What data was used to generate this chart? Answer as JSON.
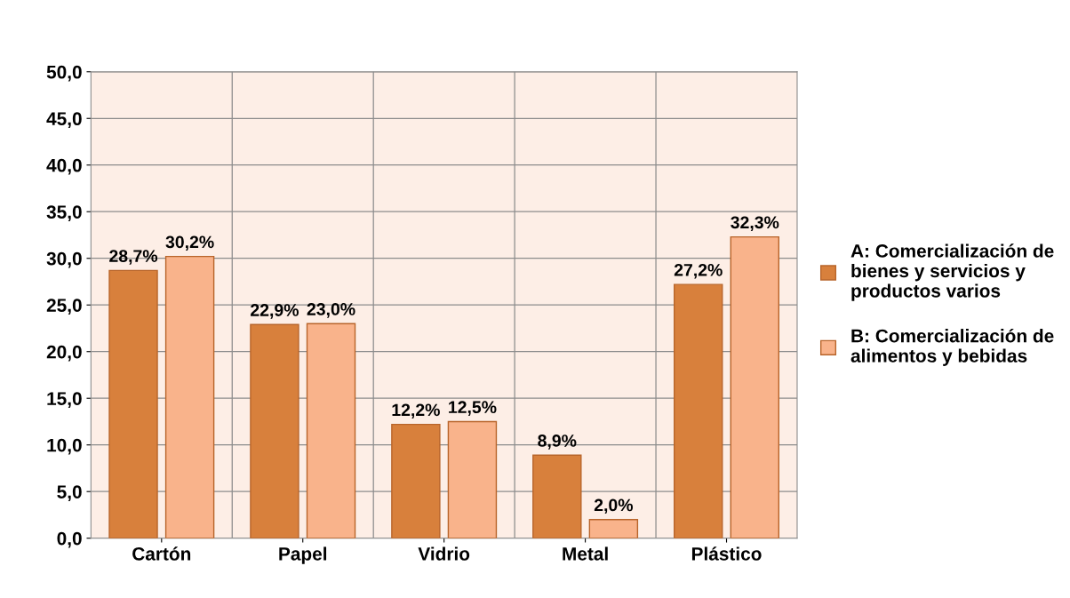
{
  "chart_data": {
    "type": "bar",
    "categories": [
      "Cartón",
      "Papel",
      "Vidrio",
      "Metal",
      "Plástico"
    ],
    "series": [
      {
        "name": "A: Comercialización de bienes y servicios y productos varios",
        "color": "#d8803c",
        "values": [
          28.7,
          22.9,
          12.2,
          8.9,
          27.2
        ],
        "value_labels": [
          "28,7%",
          "22,9%",
          "12,2%",
          "8,9%",
          "27,2%"
        ]
      },
      {
        "name": "B: Comercialización de alimentos y bebidas",
        "color": "#f9b38b",
        "values": [
          30.2,
          23.0,
          12.5,
          2.0,
          32.3
        ],
        "value_labels": [
          "30,2%",
          "23,0%",
          "12,5%",
          "2,0%",
          "32,3%"
        ]
      }
    ],
    "ylim": [
      0,
      50
    ],
    "yticks": [
      {
        "value": 0,
        "label": "0,0"
      },
      {
        "value": 5,
        "label": "5,0"
      },
      {
        "value": 10,
        "label": "10,0"
      },
      {
        "value": 15,
        "label": "15,0"
      },
      {
        "value": 20,
        "label": "20,0"
      },
      {
        "value": 25,
        "label": "25,0"
      },
      {
        "value": 30,
        "label": "30,0"
      },
      {
        "value": 35,
        "label": "35,0"
      },
      {
        "value": 40,
        "label": "40,0"
      },
      {
        "value": 45,
        "label": "45,0"
      },
      {
        "value": 50,
        "label": "50,0"
      }
    ],
    "grid": "y",
    "legend": "right"
  }
}
